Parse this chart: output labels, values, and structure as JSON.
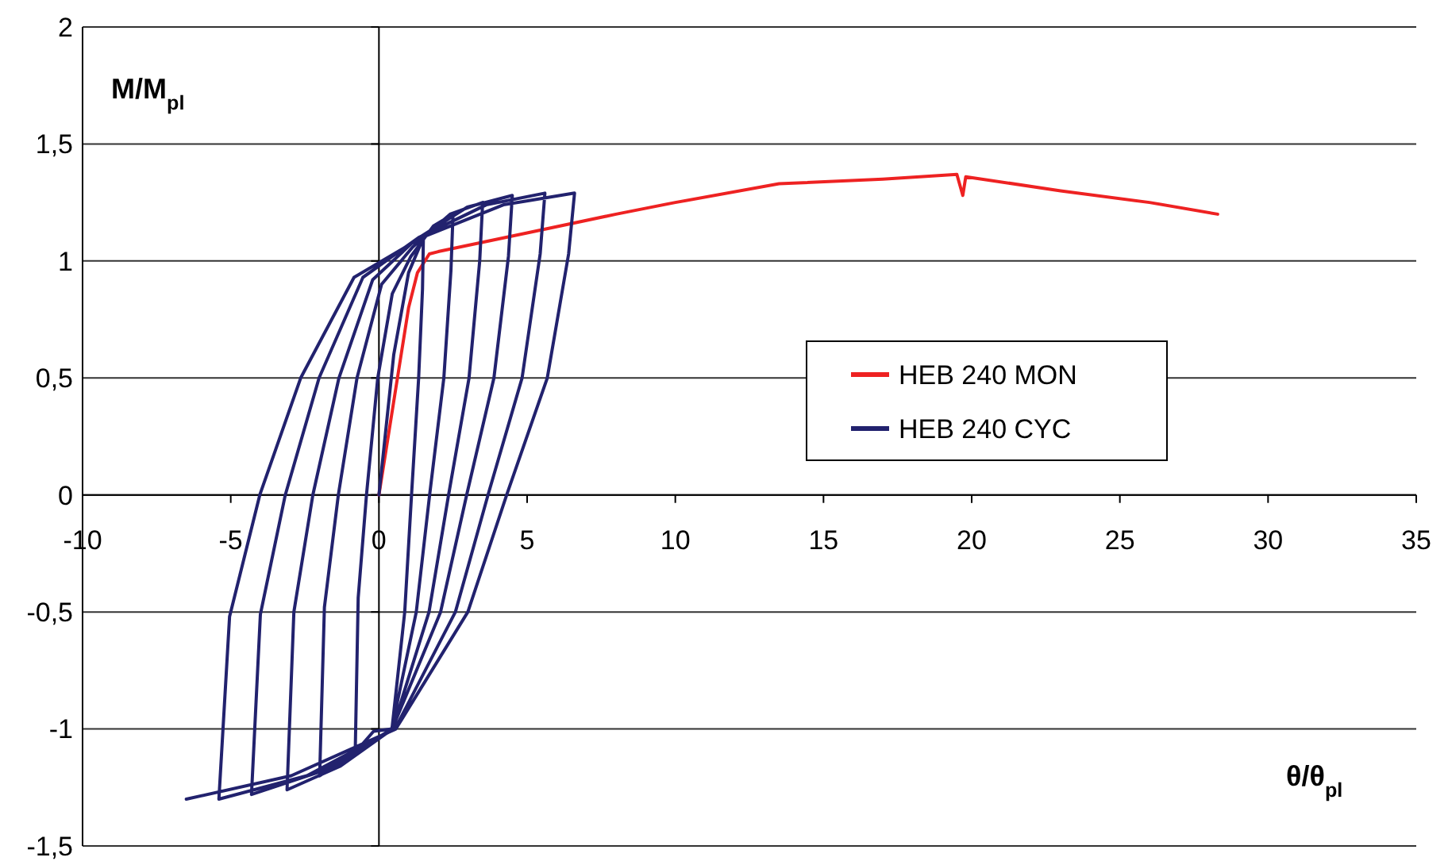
{
  "chart_data": {
    "type": "line",
    "xlabel": "θ/θ$_{pl}$",
    "ylabel": "M/M$_{pl}$",
    "xlim": [
      -10,
      35
    ],
    "xticks": [
      -10,
      -5,
      0,
      5,
      10,
      15,
      20,
      25,
      30,
      35
    ],
    "ylim": [
      -1.5,
      2
    ],
    "yticks": [
      {
        "value": -1.5,
        "label": "-1,5"
      },
      -1,
      {
        "value": -0.5,
        "label": "-0,5"
      },
      0,
      {
        "value": 0.5,
        "label": "0,5"
      },
      1,
      {
        "value": 1.5,
        "label": "1,5"
      },
      2
    ],
    "grid": "y",
    "legend": "right",
    "marker": "none",
    "line_style": "solid",
    "series": [
      {
        "name": "HEB 240 MON",
        "color": "#ee2222",
        "x": [
          0,
          0.5,
          1,
          1.3,
          1.7,
          2,
          5,
          8,
          10,
          13.5,
          17,
          19.5,
          19.7,
          19.8,
          23,
          26,
          28.3
        ],
        "values": [
          0,
          0.4,
          0.8,
          0.95,
          1.03,
          1.04,
          1.12,
          1.2,
          1.25,
          1.33,
          1.35,
          1.37,
          1.28,
          1.36,
          1.3,
          1.25,
          1.2
        ]
      },
      {
        "name": "HEB 240 CYC",
        "color": "#22226e",
        "x": [
          0,
          0.5,
          1,
          1.5,
          1.47,
          1.34,
          1.1,
          0.87,
          0.44,
          -0.18,
          -0.8,
          -0.7,
          -0.42,
          -0.04,
          0.45,
          1.08,
          1.84,
          2.5,
          2.43,
          2.19,
          1.71,
          1.26,
          0.43,
          -0.79,
          -2.0,
          -1.84,
          -1.37,
          -0.74,
          0.09,
          1.14,
          2.4,
          3.5,
          3.4,
          3.04,
          2.35,
          1.69,
          0.46,
          -1.32,
          -3.1,
          -2.87,
          -2.23,
          -1.35,
          -0.21,
          1.23,
          2.98,
          4.5,
          4.37,
          3.88,
          2.96,
          2.08,
          0.45,
          -1.92,
          -4.3,
          -4.0,
          -3.16,
          -2.02,
          -0.54,
          1.34,
          3.62,
          5.6,
          5.44,
          4.83,
          3.68,
          2.58,
          0.54,
          -2.43,
          -5.4,
          -5.04,
          -4.02,
          -2.64,
          -0.84,
          1.44,
          4.2,
          6.6,
          6.4,
          5.68,
          4.31,
          3.0,
          0.57,
          -2.96,
          -6.5
        ],
        "values": [
          0,
          0.6,
          0.95,
          1.1,
          0.88,
          0.5,
          0,
          -0.5,
          -1.0,
          -1.01,
          -1.1,
          -0.44,
          0,
          0.5,
          0.86,
          1.02,
          1.15,
          1.2,
          0.96,
          0.5,
          0,
          -0.5,
          -1.0,
          -1.1,
          -1.2,
          -0.48,
          0,
          0.5,
          0.9,
          1.06,
          1.2,
          1.25,
          1.0,
          0.5,
          0,
          -0.5,
          -1.0,
          -1.16,
          -1.26,
          -0.5,
          0,
          0.5,
          0.92,
          1.09,
          1.23,
          1.28,
          1.02,
          0.5,
          0,
          -0.5,
          -1.0,
          -1.18,
          -1.28,
          -0.51,
          0,
          0.5,
          0.93,
          1.1,
          1.24,
          1.29,
          1.03,
          0.5,
          0,
          -0.5,
          -1.0,
          -1.2,
          -1.3,
          -0.52,
          0,
          0.5,
          0.93,
          1.1,
          1.24,
          1.29,
          1.03,
          0.5,
          0,
          -0.5,
          -1.0,
          -1.2,
          -1.3
        ]
      }
    ]
  }
}
